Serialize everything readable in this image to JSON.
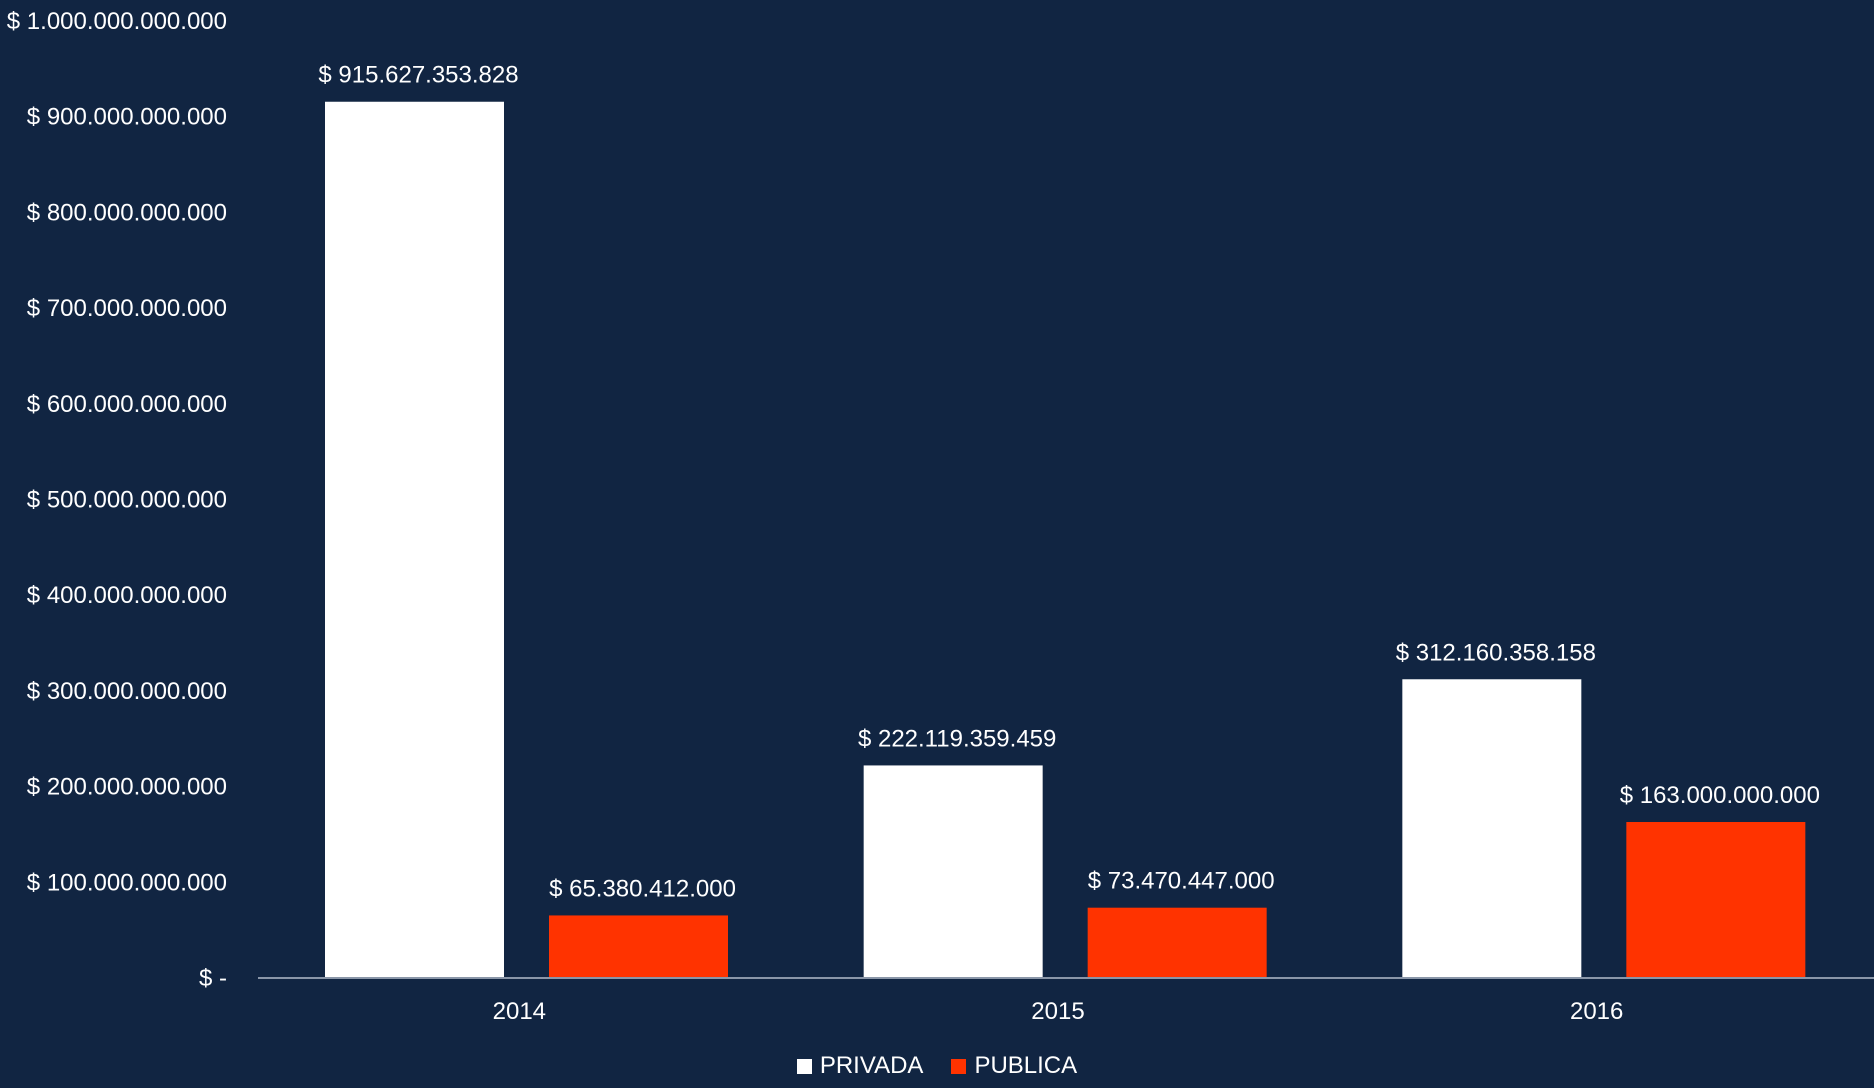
{
  "chart_data": {
    "type": "bar",
    "categories": [
      "2014",
      "2015",
      "2016"
    ],
    "series": [
      {
        "name": "PRIVADA",
        "color": "#ffffff",
        "values": [
          915627353828,
          222119359459,
          312160358158
        ],
        "labels": [
          "$ 915.627.353.828",
          "$ 222.119.359.459",
          "$ 312.160.358.158"
        ]
      },
      {
        "name": "PUBLICA",
        "color": "#ff3300",
        "values": [
          65380412000,
          73470447000,
          163000000000
        ],
        "labels": [
          "$ 65.380.412.000",
          "$ 73.470.447.000",
          "$ 163.000.000.000"
        ]
      }
    ],
    "ylim": [
      0,
      1000000000000
    ],
    "y_ticks": [
      {
        "value": 0,
        "label": "$ -"
      },
      {
        "value": 100000000000,
        "label": "$ 100.000.000.000"
      },
      {
        "value": 200000000000,
        "label": "$ 200.000.000.000"
      },
      {
        "value": 300000000000,
        "label": "$ 300.000.000.000"
      },
      {
        "value": 400000000000,
        "label": "$ 400.000.000.000"
      },
      {
        "value": 500000000000,
        "label": "$ 500.000.000.000"
      },
      {
        "value": 600000000000,
        "label": "$ 600.000.000.000"
      },
      {
        "value": 700000000000,
        "label": "$ 700.000.000.000"
      },
      {
        "value": 800000000000,
        "label": "$ 800.000.000.000"
      },
      {
        "value": 900000000000,
        "label": "$ 900.000.000.000"
      },
      {
        "value": 1000000000000,
        "label": "$ 1.000.000.000.000"
      }
    ],
    "grid": false,
    "legend_position": "bottom",
    "title": "",
    "xlabel": "",
    "ylabel": ""
  }
}
